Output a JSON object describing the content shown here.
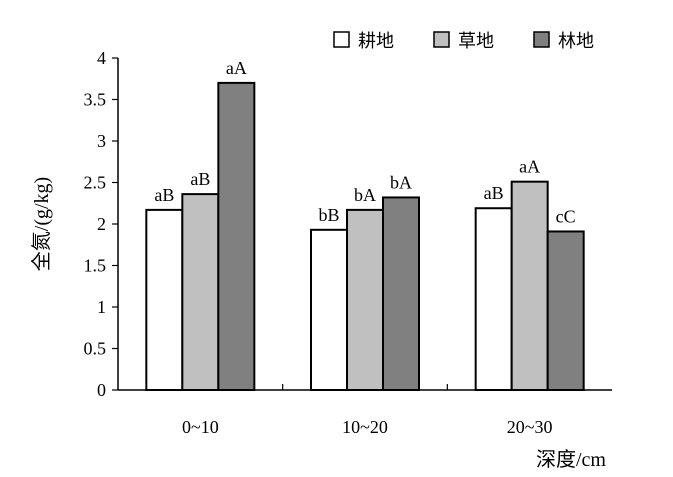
{
  "chart_data": {
    "type": "bar",
    "categories": [
      "0~10",
      "10~20",
      "20~30"
    ],
    "series": [
      {
        "name": "耕地",
        "values": [
          2.17,
          1.93,
          2.19
        ],
        "labels": [
          "aB",
          "bB",
          "aB"
        ],
        "color": "#ffffff"
      },
      {
        "name": "草地",
        "values": [
          2.36,
          2.17,
          2.51
        ],
        "labels": [
          "aB",
          "bA",
          "aA"
        ],
        "color": "#c0c0c0"
      },
      {
        "name": "林地",
        "values": [
          3.7,
          2.32,
          1.91
        ],
        "labels": [
          "aA",
          "bA",
          "cC"
        ],
        "color": "#808080"
      }
    ],
    "ylabel": "全氮/(g/kg)",
    "xlabel": "深度/cm",
    "ylim": [
      0,
      4
    ],
    "yticks": [
      "0",
      "0.5",
      "1",
      "1.5",
      "2",
      "2.5",
      "3",
      "3.5",
      "4"
    ],
    "grid": false,
    "legend_position": "top-right"
  }
}
